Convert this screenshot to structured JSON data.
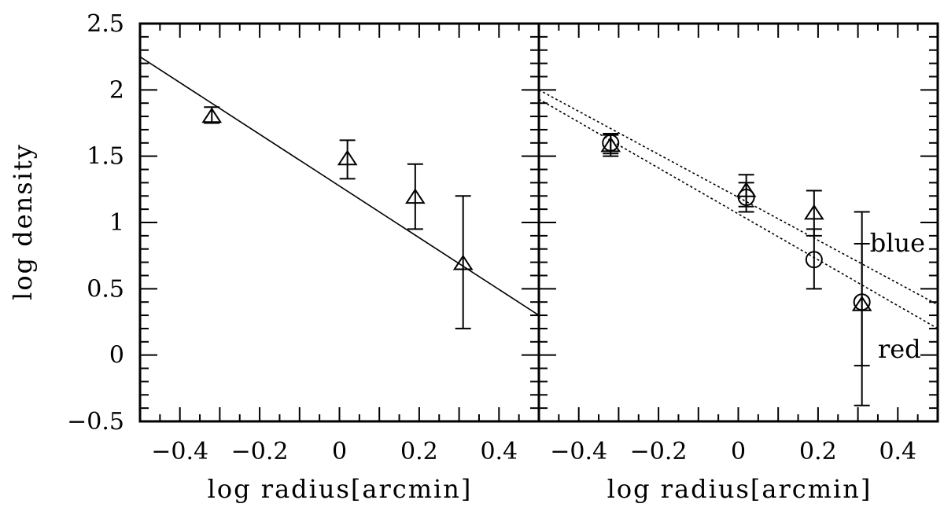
{
  "chart_data": [
    {
      "type": "scatter",
      "panel": "left",
      "xlabel": "log radius[arcmin]",
      "ylabel": "log density",
      "xlim": [
        -0.5,
        0.5
      ],
      "ylim": [
        -0.5,
        2.5
      ],
      "xticks": [
        -0.4,
        -0.2,
        0,
        0.2,
        0.4
      ],
      "xtick_labels": [
        "−0.4",
        "−0.2",
        "0",
        "0.2",
        "0.4"
      ],
      "yticks": [
        -0.5,
        0,
        0.5,
        1,
        1.5,
        2,
        2.5
      ],
      "ytick_labels": [
        "−0.5",
        "0",
        "0.5",
        "1",
        "1.5",
        "2",
        "2.5"
      ],
      "series": [
        {
          "marker": "triangle",
          "points": [
            {
              "x": -0.32,
              "y": 1.8,
              "ylo": 1.75,
              "yhi": 1.87
            },
            {
              "x": 0.02,
              "y": 1.48,
              "ylo": 1.33,
              "yhi": 1.62
            },
            {
              "x": 0.19,
              "y": 1.19,
              "ylo": 0.95,
              "yhi": 1.44
            },
            {
              "x": 0.31,
              "y": 0.69,
              "ylo": 0.2,
              "yhi": 1.2
            }
          ]
        }
      ],
      "fits": [
        {
          "style": "solid",
          "x": [
            -0.5,
            0.5
          ],
          "y": [
            2.25,
            0.3
          ]
        }
      ],
      "annotations": []
    },
    {
      "type": "scatter",
      "panel": "right",
      "xlabel": "log radius[arcmin]",
      "ylabel": "",
      "xlim": [
        -0.5,
        0.5
      ],
      "ylim": [
        -0.5,
        2.5
      ],
      "xticks": [
        -0.4,
        -0.2,
        0,
        0.2,
        0.4
      ],
      "xtick_labels": [
        "−0.4",
        "−0.2",
        "0",
        "0.2",
        "0.4"
      ],
      "yticks": [
        -0.5,
        0,
        0.5,
        1,
        1.5,
        2,
        2.5
      ],
      "ytick_labels": [],
      "series": [
        {
          "marker": "triangle",
          "points": [
            {
              "x": -0.32,
              "y": 1.58,
              "ylo": 1.5,
              "yhi": 1.66
            },
            {
              "x": 0.02,
              "y": 1.24,
              "ylo": 1.12,
              "yhi": 1.36
            },
            {
              "x": 0.19,
              "y": 1.07,
              "ylo": 0.9,
              "yhi": 1.24
            },
            {
              "x": 0.31,
              "y": 0.38,
              "ylo": -0.08,
              "yhi": 0.84
            }
          ]
        },
        {
          "marker": "circle",
          "points": [
            {
              "x": -0.32,
              "y": 1.6,
              "ylo": 1.52,
              "yhi": 1.67
            },
            {
              "x": 0.02,
              "y": 1.19,
              "ylo": 1.08,
              "yhi": 1.3
            },
            {
              "x": 0.19,
              "y": 0.72,
              "ylo": 0.5,
              "yhi": 0.95
            },
            {
              "x": 0.31,
              "y": 0.4,
              "ylo": -0.38,
              "yhi": 1.08
            }
          ]
        }
      ],
      "fits": [
        {
          "style": "dotted",
          "x": [
            -0.5,
            0.5
          ],
          "y": [
            2.0,
            0.38
          ]
        },
        {
          "style": "dotted",
          "x": [
            -0.5,
            0.5
          ],
          "y": [
            1.93,
            0.2
          ]
        }
      ],
      "annotations": [
        {
          "text": "blue",
          "x": 0.33,
          "y": 0.78
        },
        {
          "text": "red",
          "x": 0.35,
          "y": -0.02
        }
      ]
    }
  ]
}
